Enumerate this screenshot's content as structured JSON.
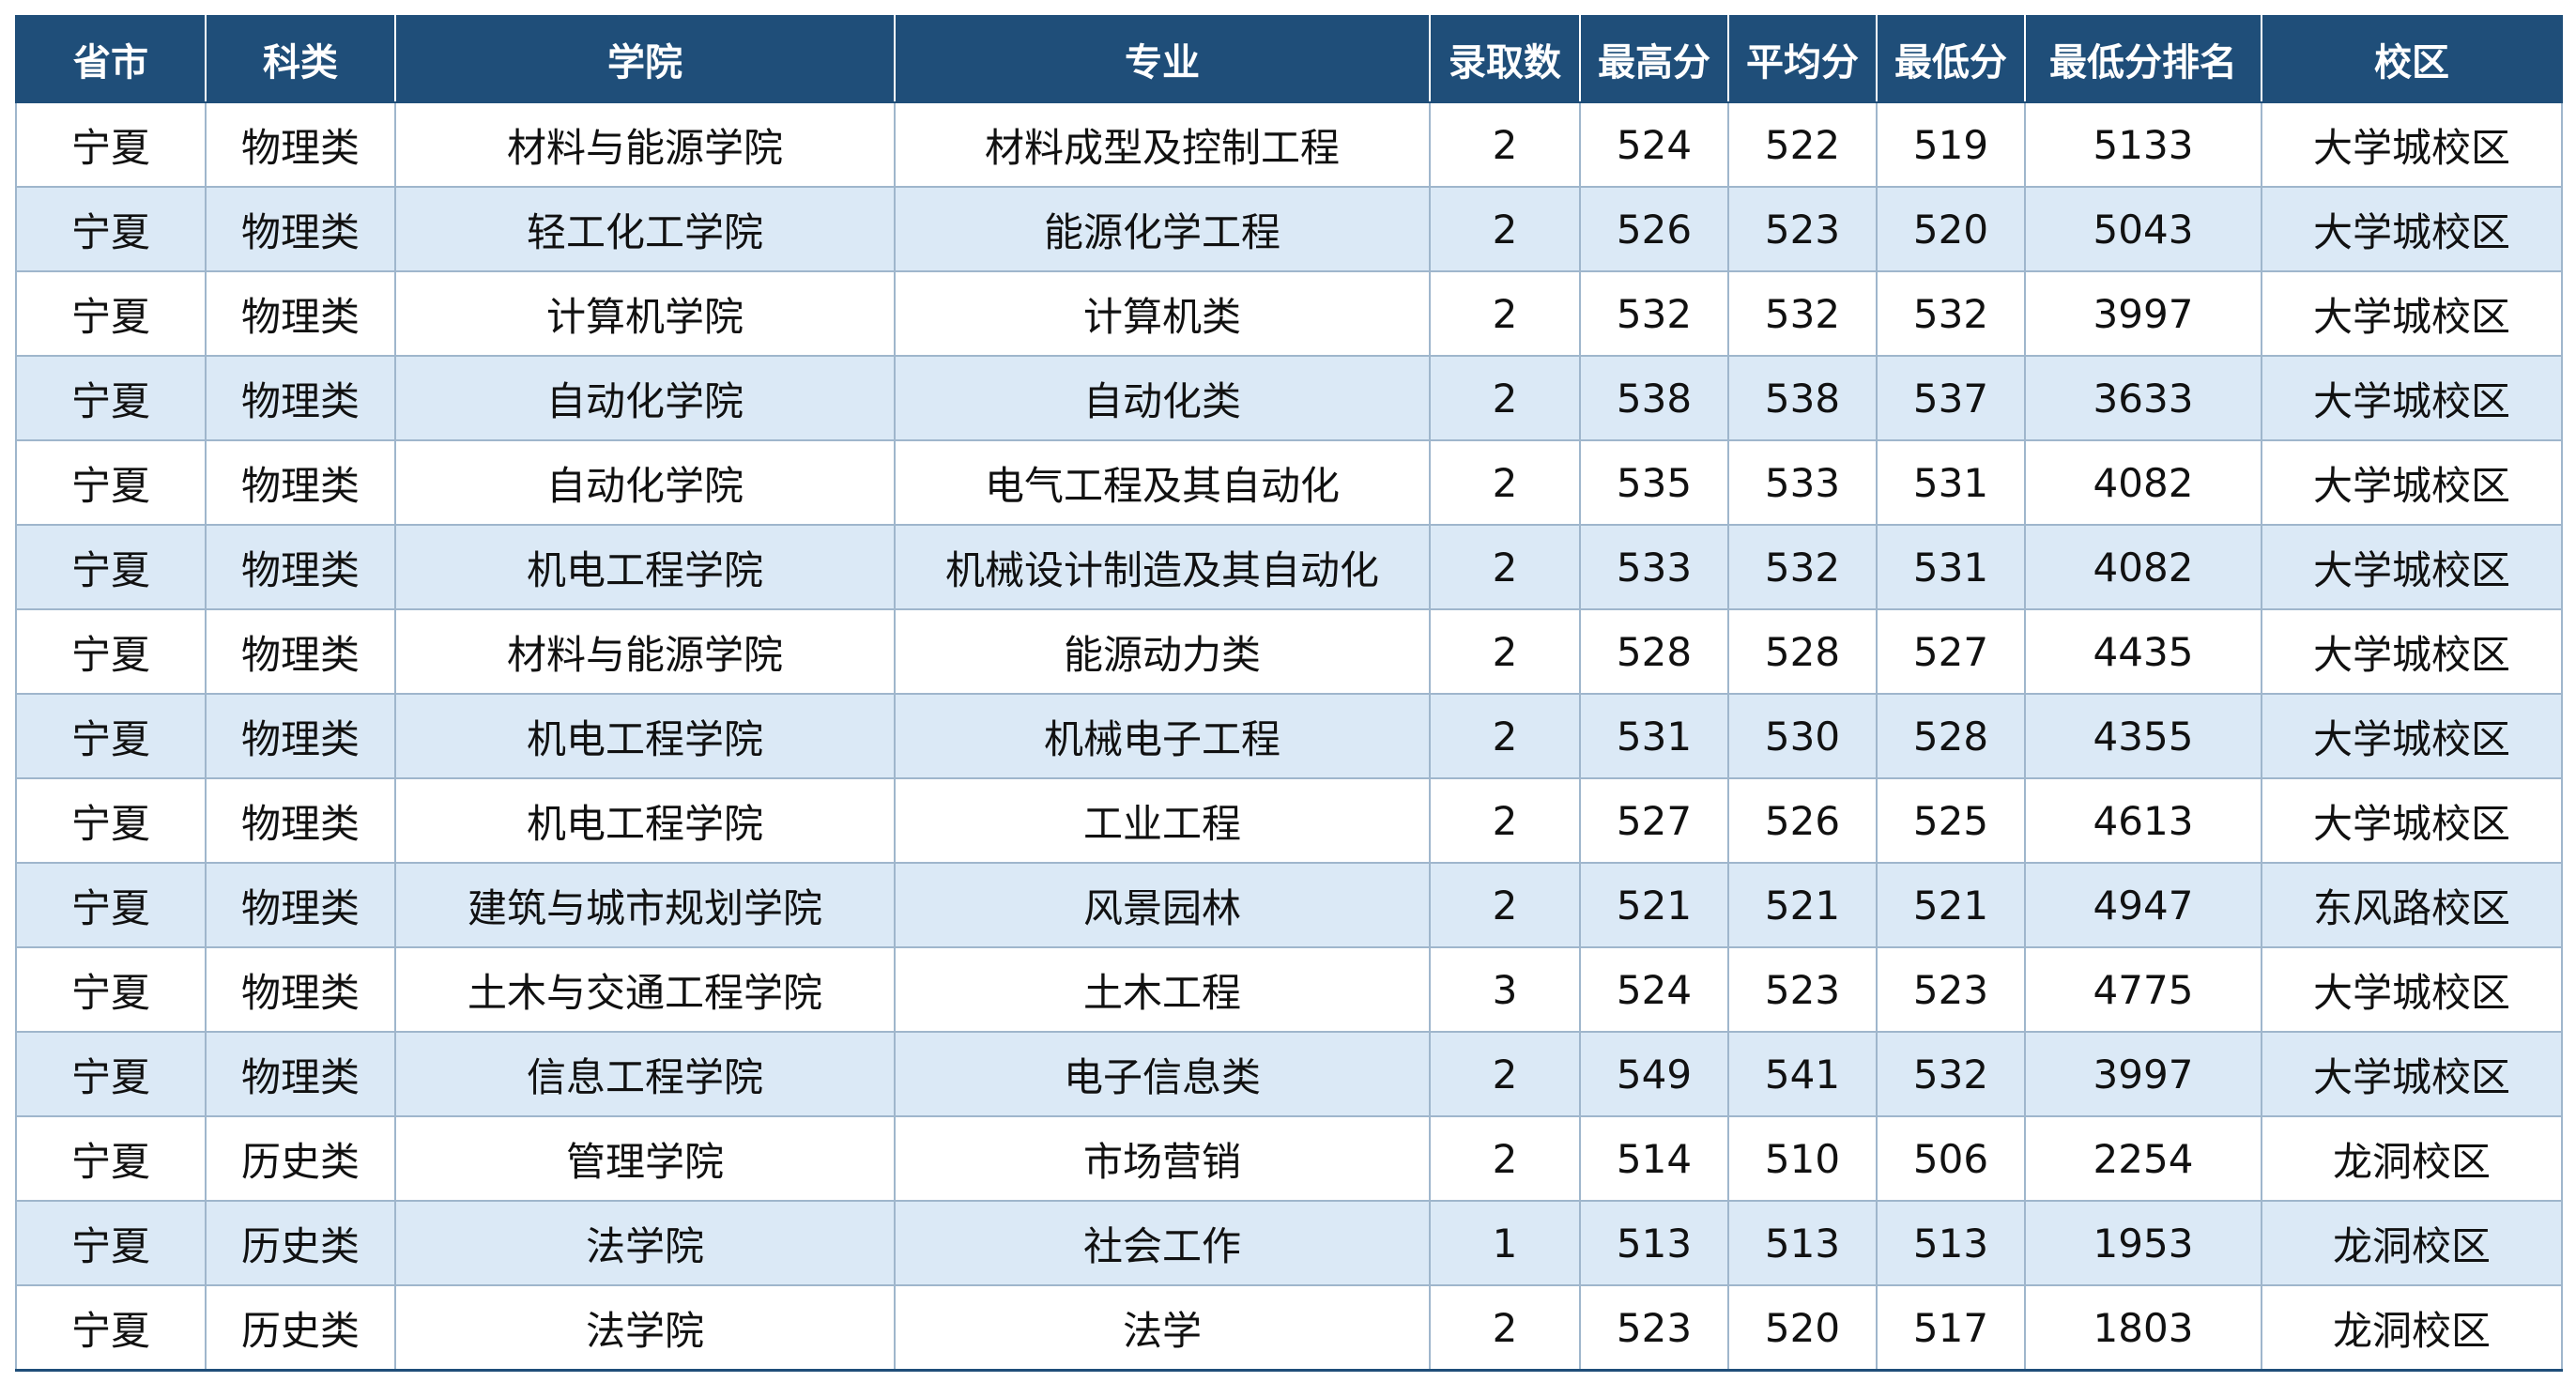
{
  "table": {
    "headers": [
      "省市",
      "科类",
      "学院",
      "专业",
      "录取数",
      "最高分",
      "平均分",
      "最低分",
      "最低分排名",
      "校区"
    ],
    "rows": [
      [
        "宁夏",
        "物理类",
        "材料与能源学院",
        "材料成型及控制工程",
        "2",
        "524",
        "522",
        "519",
        "5133",
        "大学城校区"
      ],
      [
        "宁夏",
        "物理类",
        "轻工化工学院",
        "能源化学工程",
        "2",
        "526",
        "523",
        "520",
        "5043",
        "大学城校区"
      ],
      [
        "宁夏",
        "物理类",
        "计算机学院",
        "计算机类",
        "2",
        "532",
        "532",
        "532",
        "3997",
        "大学城校区"
      ],
      [
        "宁夏",
        "物理类",
        "自动化学院",
        "自动化类",
        "2",
        "538",
        "538",
        "537",
        "3633",
        "大学城校区"
      ],
      [
        "宁夏",
        "物理类",
        "自动化学院",
        "电气工程及其自动化",
        "2",
        "535",
        "533",
        "531",
        "4082",
        "大学城校区"
      ],
      [
        "宁夏",
        "物理类",
        "机电工程学院",
        "机械设计制造及其自动化",
        "2",
        "533",
        "532",
        "531",
        "4082",
        "大学城校区"
      ],
      [
        "宁夏",
        "物理类",
        "材料与能源学院",
        "能源动力类",
        "2",
        "528",
        "528",
        "527",
        "4435",
        "大学城校区"
      ],
      [
        "宁夏",
        "物理类",
        "机电工程学院",
        "机械电子工程",
        "2",
        "531",
        "530",
        "528",
        "4355",
        "大学城校区"
      ],
      [
        "宁夏",
        "物理类",
        "机电工程学院",
        "工业工程",
        "2",
        "527",
        "526",
        "525",
        "4613",
        "大学城校区"
      ],
      [
        "宁夏",
        "物理类",
        "建筑与城市规划学院",
        "风景园林",
        "2",
        "521",
        "521",
        "521",
        "4947",
        "东风路校区"
      ],
      [
        "宁夏",
        "物理类",
        "土木与交通工程学院",
        "土木工程",
        "3",
        "524",
        "523",
        "523",
        "4775",
        "大学城校区"
      ],
      [
        "宁夏",
        "物理类",
        "信息工程学院",
        "电子信息类",
        "2",
        "549",
        "541",
        "532",
        "3997",
        "大学城校区"
      ],
      [
        "宁夏",
        "历史类",
        "管理学院",
        "市场营销",
        "2",
        "514",
        "510",
        "506",
        "2254",
        "龙洞校区"
      ],
      [
        "宁夏",
        "历史类",
        "法学院",
        "社会工作",
        "1",
        "513",
        "513",
        "513",
        "1953",
        "龙洞校区"
      ],
      [
        "宁夏",
        "历史类",
        "法学院",
        "法学",
        "2",
        "523",
        "520",
        "517",
        "1803",
        "龙洞校区"
      ]
    ]
  }
}
